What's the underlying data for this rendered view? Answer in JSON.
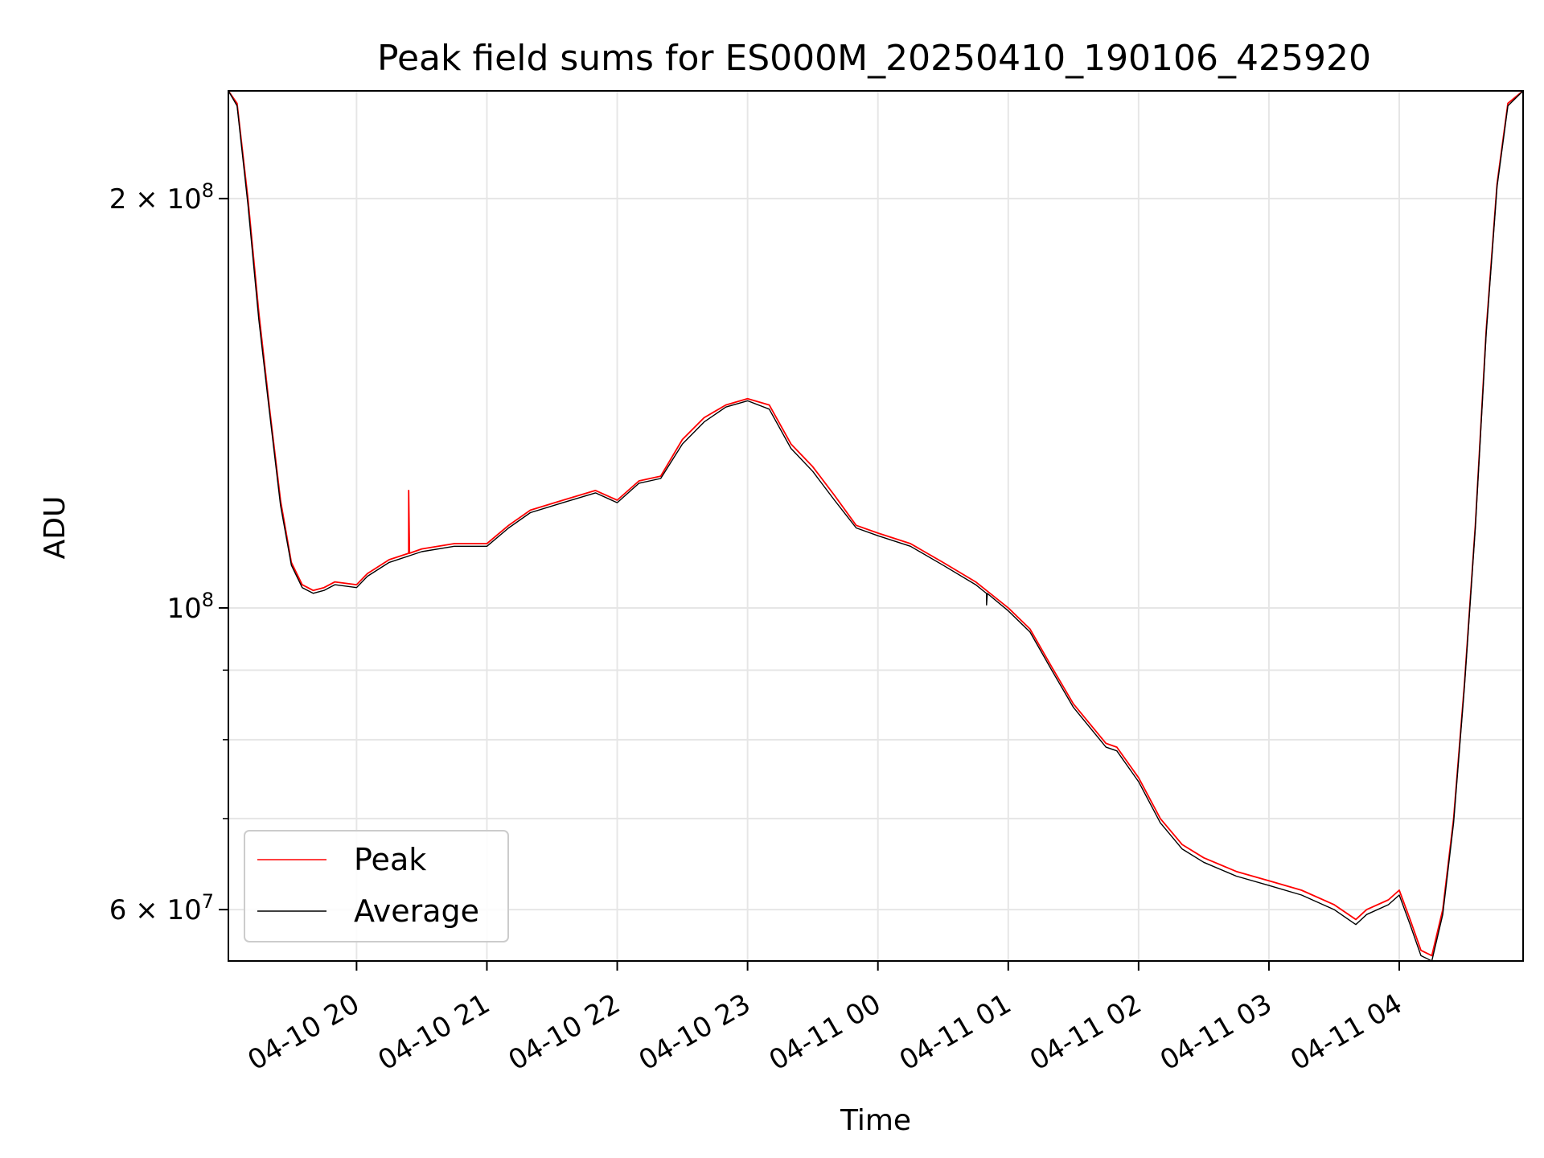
{
  "chart_data": {
    "type": "line",
    "title": "Peak field sums for ES000M_20250410_190106_425920",
    "xlabel": "Time",
    "ylabel": "ADU",
    "y_scale": "log",
    "ylim": [
      55000000,
      240000000
    ],
    "xlim": [
      "2025-04-10 19:01",
      "2025-04-11 04:57"
    ],
    "grid": true,
    "legend_position": "lower-left",
    "x_tick_labels": [
      {
        "t": "2025-04-10 20:00",
        "label": "04-10 20"
      },
      {
        "t": "2025-04-10 21:00",
        "label": "04-10 21"
      },
      {
        "t": "2025-04-10 22:00",
        "label": "04-10 22"
      },
      {
        "t": "2025-04-10 23:00",
        "label": "04-10 23"
      },
      {
        "t": "2025-04-11 00:00",
        "label": "04-11 00"
      },
      {
        "t": "2025-04-11 01:00",
        "label": "04-11 01"
      },
      {
        "t": "2025-04-11 02:00",
        "label": "04-11 02"
      },
      {
        "t": "2025-04-11 03:00",
        "label": "04-11 03"
      },
      {
        "t": "2025-04-11 04:00",
        "label": "04-11 04"
      }
    ],
    "y_tick_labels": [
      {
        "value": 60000000,
        "mantissa": "6",
        "exponent": "7"
      },
      {
        "value": 100000000,
        "mantissa": "",
        "exponent": "8"
      },
      {
        "value": 200000000,
        "mantissa": "2",
        "exponent": "8"
      }
    ],
    "y_minor_ticks": [
      70000000,
      80000000,
      90000000
    ],
    "x": [
      "2025-04-10 19:01",
      "2025-04-10 19:05",
      "2025-04-10 19:10",
      "2025-04-10 19:15",
      "2025-04-10 19:20",
      "2025-04-10 19:25",
      "2025-04-10 19:30",
      "2025-04-10 19:35",
      "2025-04-10 19:40",
      "2025-04-10 19:45",
      "2025-04-10 19:50",
      "2025-04-10 20:00",
      "2025-04-10 20:05",
      "2025-04-10 20:15",
      "2025-04-10 20:30",
      "2025-04-10 20:45",
      "2025-04-10 21:00",
      "2025-04-10 21:10",
      "2025-04-10 21:20",
      "2025-04-10 21:35",
      "2025-04-10 21:50",
      "2025-04-10 22:00",
      "2025-04-10 22:10",
      "2025-04-10 22:20",
      "2025-04-10 22:30",
      "2025-04-10 22:40",
      "2025-04-10 22:50",
      "2025-04-10 23:00",
      "2025-04-10 23:10",
      "2025-04-10 23:20",
      "2025-04-10 23:30",
      "2025-04-10 23:40",
      "2025-04-10 23:50",
      "2025-04-11 00:00",
      "2025-04-11 00:15",
      "2025-04-11 00:30",
      "2025-04-11 00:45",
      "2025-04-11 01:00",
      "2025-04-11 01:10",
      "2025-04-11 01:20",
      "2025-04-11 01:30",
      "2025-04-11 01:45",
      "2025-04-11 01:50",
      "2025-04-11 02:00",
      "2025-04-11 02:10",
      "2025-04-11 02:20",
      "2025-04-11 02:30",
      "2025-04-11 02:45",
      "2025-04-11 03:00",
      "2025-04-11 03:15",
      "2025-04-11 03:30",
      "2025-04-11 03:40",
      "2025-04-11 03:45",
      "2025-04-11 03:55",
      "2025-04-11 04:00",
      "2025-04-11 04:05",
      "2025-04-11 04:10",
      "2025-04-11 04:15",
      "2025-04-11 04:20",
      "2025-04-11 04:25",
      "2025-04-11 04:30",
      "2025-04-11 04:35",
      "2025-04-11 04:40",
      "2025-04-11 04:45",
      "2025-04-11 04:50",
      "2025-04-11 04:57"
    ],
    "series": [
      {
        "name": "Peak",
        "color": "#ff0000",
        "values": [
          240000000,
          235000000,
          200000000,
          165000000,
          140000000,
          120000000,
          108000000,
          104000000,
          103000000,
          103500000,
          104500000,
          104000000,
          106000000,
          108500000,
          110500000,
          111500000,
          111500000,
          115000000,
          118000000,
          120000000,
          122000000,
          120000000,
          124000000,
          125000000,
          133000000,
          138000000,
          141000000,
          142500000,
          141000000,
          132000000,
          127000000,
          121000000,
          115000000,
          113500000,
          111500000,
          108000000,
          104500000,
          100000000,
          96500000,
          90500000,
          85000000,
          79500000,
          79000000,
          75000000,
          70000000,
          67000000,
          65500000,
          64000000,
          63000000,
          62000000,
          60500000,
          59000000,
          60000000,
          61000000,
          62000000,
          59000000,
          56000000,
          55500000,
          60000000,
          70000000,
          88000000,
          115000000,
          160000000,
          205000000,
          235000000,
          240000000
        ]
      },
      {
        "name": "Average",
        "color": "#000000",
        "values": [
          240000000,
          234000000,
          198000000,
          163000000,
          139000000,
          119000000,
          107500000,
          103500000,
          102500000,
          103000000,
          104000000,
          103500000,
          105500000,
          108000000,
          110000000,
          111000000,
          111000000,
          114500000,
          117500000,
          119500000,
          121500000,
          119500000,
          123500000,
          124500000,
          132000000,
          137000000,
          140500000,
          142000000,
          140000000,
          131000000,
          126000000,
          120000000,
          114500000,
          113000000,
          111000000,
          107500000,
          104000000,
          99500000,
          96000000,
          90000000,
          84500000,
          79000000,
          78500000,
          74500000,
          69500000,
          66500000,
          65000000,
          63500000,
          62500000,
          61500000,
          60000000,
          58500000,
          59500000,
          60500000,
          61500000,
          58500000,
          55500000,
          55000000,
          59500000,
          69500000,
          87500000,
          114500000,
          159000000,
          204000000,
          234000000,
          240000000
        ]
      }
    ],
    "annotations": [
      {
        "series": "Peak",
        "t": "2025-04-10 20:24",
        "value": 122000000
      },
      {
        "series": "Average",
        "t": "2025-04-11 00:50",
        "value": 100500000
      }
    ]
  }
}
